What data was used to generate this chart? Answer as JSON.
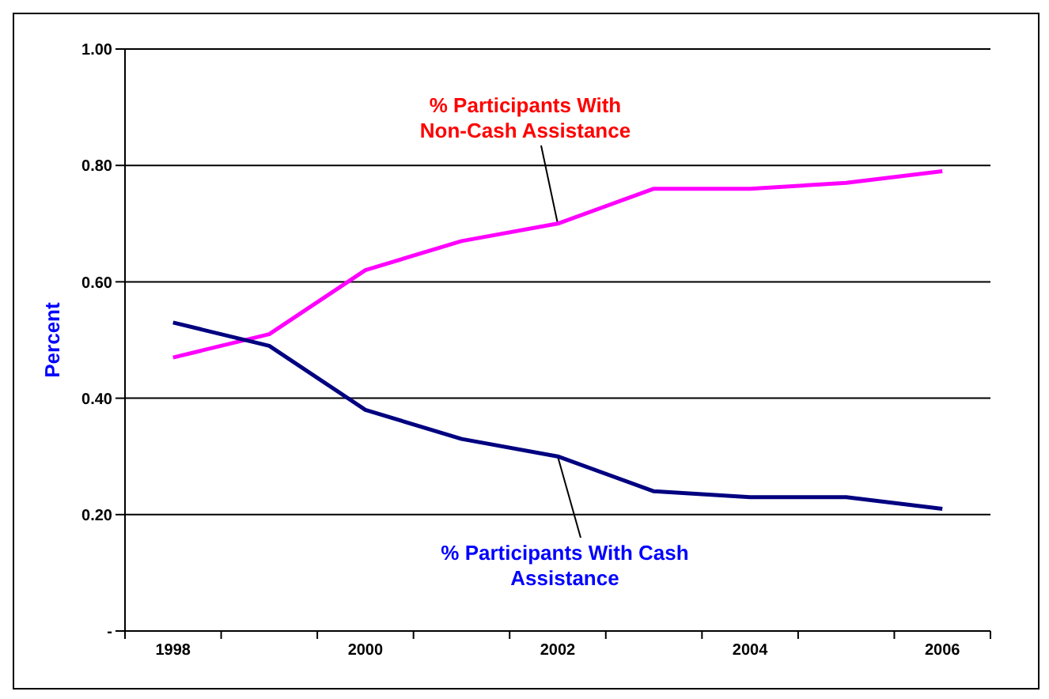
{
  "chart_data": {
    "type": "line",
    "ylabel": "Percent",
    "categories": [
      "1998",
      null,
      "2000",
      null,
      "2002",
      null,
      "2004",
      null,
      "2006"
    ],
    "series": [
      {
        "color": "#ff00ff",
        "values": [
          0.47,
          0.51,
          0.62,
          0.67,
          0.7,
          0.76,
          0.76,
          0.77,
          0.79
        ]
      },
      {
        "color": "#000080",
        "values": [
          0.53,
          0.49,
          0.38,
          0.33,
          0.3,
          0.24,
          0.23,
          0.23,
          0.21
        ]
      }
    ],
    "ylim": [
      0,
      1
    ],
    "yticks": [
      {
        "value": 0,
        "label": "-"
      },
      {
        "value": 0.2,
        "label": "0.20"
      },
      {
        "value": 0.4,
        "label": "0.40"
      },
      {
        "value": 0.6,
        "label": "0.60"
      },
      {
        "value": 0.8,
        "label": "0.80"
      },
      {
        "value": 1,
        "label": "1.00"
      }
    ],
    "grid": "y",
    "legend": false,
    "marker": "none",
    "line_style": "solid",
    "annotations": [
      {
        "text": "% Participants With Non-Cash Assistance",
        "x": "2002",
        "y": 0.7
      },
      {
        "text": "% Participants With Cash Assistance",
        "x": "2002",
        "y": 0.3
      }
    ]
  }
}
